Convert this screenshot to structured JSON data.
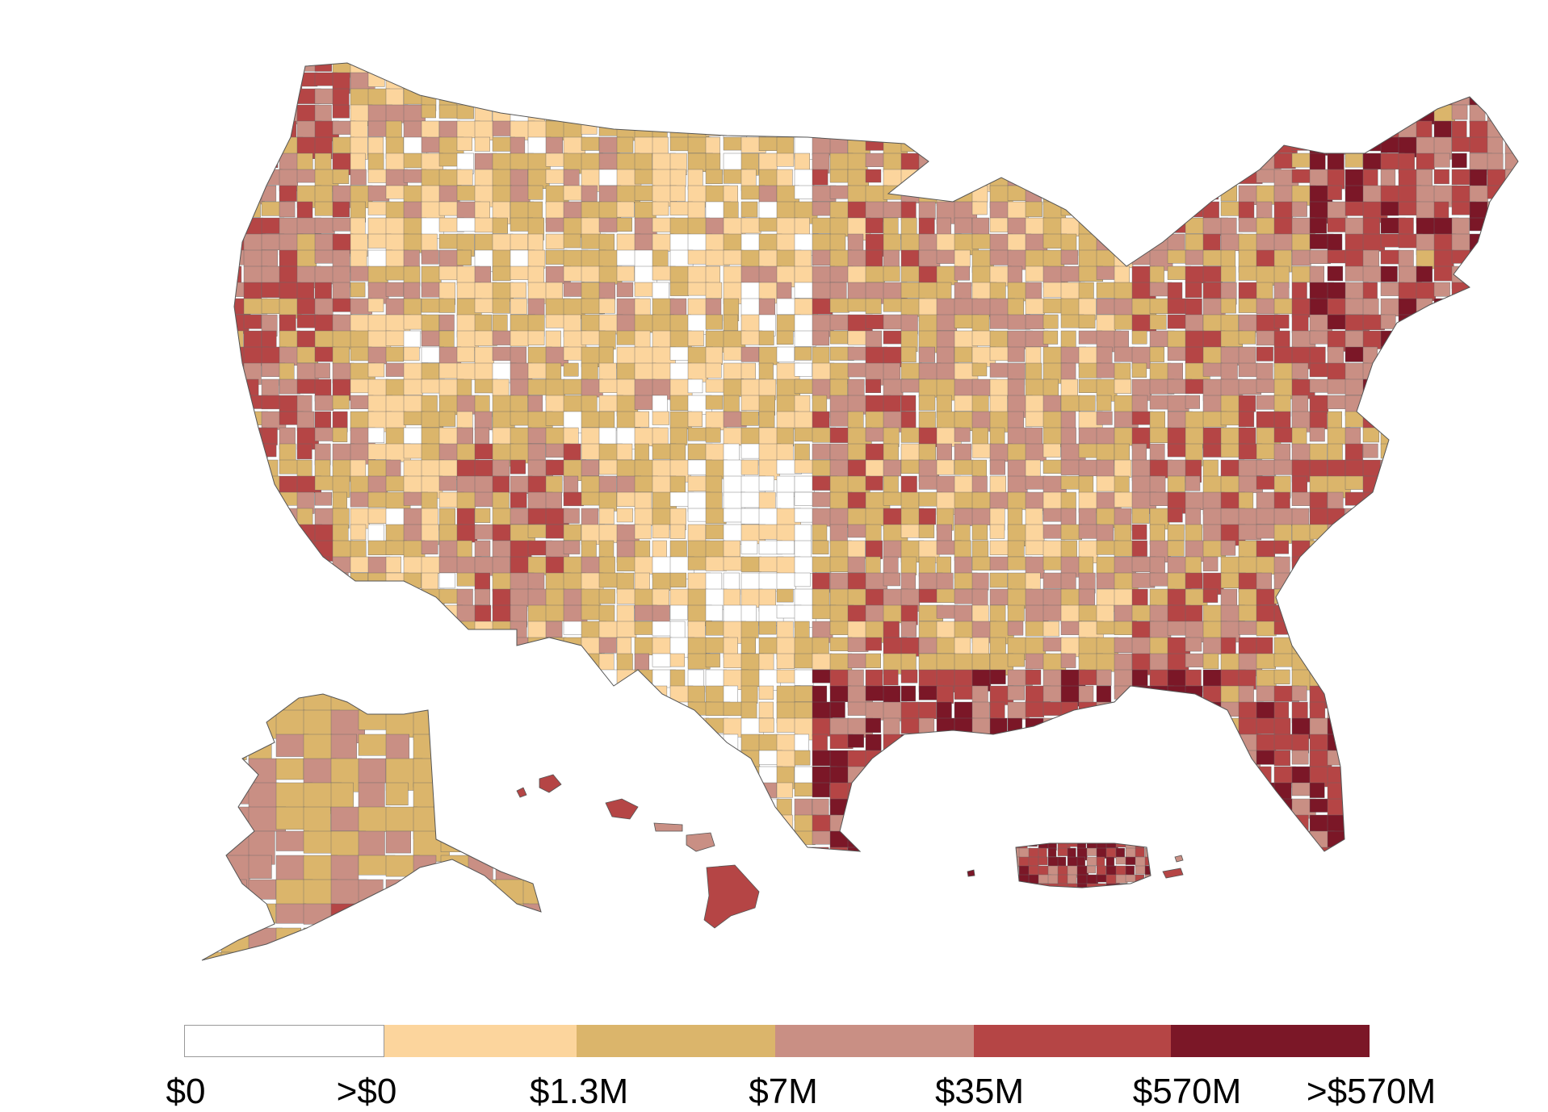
{
  "legend": {
    "bins": [
      {
        "label": "$0",
        "color": "#ffffff"
      },
      {
        "label": ">$0",
        "color": "#fcd59d"
      },
      {
        "label": "$1.3M",
        "color": "#dbb56b"
      },
      {
        "label": "$7M",
        "color": "#c98f84"
      },
      {
        "label": "$35M",
        "color": "#b54545"
      },
      {
        "label": "$570M",
        "color": "#7b1727"
      }
    ],
    "tick_labels": [
      "$0",
      ">$0",
      "$1.3M",
      "$7M",
      "$35M",
      "$570M",
      ">$570M"
    ],
    "swatch_border": "#999999"
  },
  "map": {
    "regions": [
      "contiguous-us",
      "alaska",
      "hawaii",
      "puerto-rico"
    ],
    "border_color": "#555555"
  }
}
